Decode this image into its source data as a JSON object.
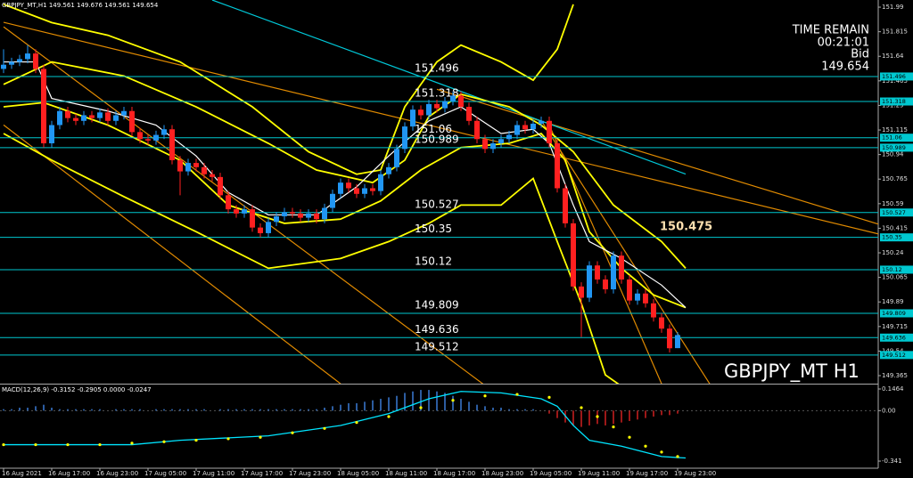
{
  "chart_data": [
    {
      "type": "candlestick",
      "title": "GBPJPY_MT,H1 149.561 149.676 149.561 149.654",
      "info": [
        "TIME REMAIN",
        "00:21:01",
        "Bid",
        "149.654"
      ],
      "watermark": "GBPJPY_MT H1",
      "price_label": 150.475,
      "ylim": [
        149.308,
        152.041
      ],
      "yticks": [
        151.99,
        151.815,
        151.64,
        151.465,
        151.29,
        151.115,
        150.94,
        150.765,
        150.59,
        150.415,
        150.24,
        150.065,
        149.89,
        149.715,
        149.54,
        149.365
      ],
      "levels": [
        151.496,
        151.318,
        151.06,
        150.989,
        150.527,
        150.35,
        150.12,
        149.809,
        149.636,
        149.512
      ],
      "level_color": "#00c8d0",
      "up_color": "#2196f3",
      "down_color": "#ff2020",
      "categories": [
        "16 Aug 2021",
        null,
        null,
        null,
        null,
        null,
        "16 Aug 17:00",
        null,
        null,
        null,
        null,
        null,
        "16 Aug 23:00",
        null,
        null,
        null,
        null,
        null,
        "17 Aug 05:00",
        null,
        null,
        null,
        null,
        null,
        "17 Aug 11:00",
        null,
        null,
        null,
        null,
        null,
        "17 Aug 17:00",
        null,
        null,
        null,
        null,
        null,
        "17 Aug 23:00",
        null,
        null,
        null,
        null,
        null,
        "18 Aug 05:00",
        null,
        null,
        null,
        null,
        null,
        "18 Aug 11:00",
        null,
        null,
        null,
        null,
        null,
        "18 Aug 17:00",
        null,
        null,
        null,
        null,
        null,
        "18 Aug 23:00",
        null,
        null,
        null,
        null,
        null,
        "19 Aug 05:00",
        null,
        null,
        null,
        null,
        null,
        "19 Aug 11:00",
        null,
        null,
        null,
        null,
        null,
        "19 Aug 17:00",
        null,
        null,
        null,
        null,
        null,
        "19 Aug 23:00"
      ],
      "candles": [
        [
          151.55,
          151.69,
          151.52,
          151.58
        ],
        [
          151.58,
          151.63,
          151.55,
          151.6
        ],
        [
          151.6,
          151.65,
          151.57,
          151.62
        ],
        [
          151.62,
          151.72,
          151.59,
          151.66
        ],
        [
          151.66,
          151.69,
          151.52,
          151.55
        ],
        [
          151.55,
          151.58,
          150.99,
          151.02
        ],
        [
          151.02,
          151.18,
          150.99,
          151.15
        ],
        [
          151.15,
          151.28,
          151.12,
          151.25
        ],
        [
          151.25,
          151.28,
          151.17,
          151.2
        ],
        [
          151.2,
          151.23,
          151.15,
          151.18
        ],
        [
          151.18,
          151.25,
          151.15,
          151.22
        ],
        [
          151.22,
          151.25,
          151.17,
          151.2
        ],
        [
          151.2,
          151.27,
          151.17,
          151.24
        ],
        [
          151.24,
          151.27,
          151.15,
          151.18
        ],
        [
          151.18,
          151.25,
          151.15,
          151.22
        ],
        [
          151.22,
          151.28,
          151.19,
          151.25
        ],
        [
          151.25,
          151.28,
          151.07,
          151.1
        ],
        [
          151.1,
          151.13,
          151.02,
          151.05
        ],
        [
          151.05,
          151.08,
          151.01,
          151.04
        ],
        [
          151.04,
          151.11,
          151.01,
          151.08
        ],
        [
          151.08,
          151.15,
          151.05,
          151.12
        ],
        [
          151.12,
          151.15,
          150.87,
          150.9
        ],
        [
          150.9,
          150.93,
          150.65,
          150.82
        ],
        [
          150.82,
          150.91,
          150.79,
          150.88
        ],
        [
          150.88,
          150.91,
          150.82,
          150.85
        ],
        [
          150.85,
          150.88,
          150.77,
          150.8
        ],
        [
          150.8,
          150.83,
          150.75,
          150.78
        ],
        [
          150.78,
          150.81,
          150.62,
          150.65
        ],
        [
          150.65,
          150.68,
          150.52,
          150.55
        ],
        [
          150.55,
          150.58,
          150.49,
          150.52
        ],
        [
          150.52,
          150.58,
          150.49,
          150.55
        ],
        [
          150.55,
          150.58,
          150.39,
          150.42
        ],
        [
          150.42,
          150.45,
          150.35,
          150.38
        ],
        [
          150.38,
          150.49,
          150.35,
          150.46
        ],
        [
          150.46,
          150.53,
          150.43,
          150.5
        ],
        [
          150.5,
          150.56,
          150.47,
          150.53
        ],
        [
          150.53,
          150.56,
          150.49,
          150.52
        ],
        [
          150.52,
          150.55,
          150.46,
          150.49
        ],
        [
          150.49,
          150.55,
          150.46,
          150.52
        ],
        [
          150.52,
          150.55,
          150.45,
          150.48
        ],
        [
          150.48,
          150.59,
          150.45,
          150.56
        ],
        [
          150.56,
          150.69,
          150.53,
          150.66
        ],
        [
          150.66,
          150.77,
          150.63,
          150.74
        ],
        [
          150.74,
          150.77,
          150.67,
          150.7
        ],
        [
          150.7,
          150.73,
          150.63,
          150.66
        ],
        [
          150.66,
          150.73,
          150.63,
          150.7
        ],
        [
          150.7,
          150.73,
          150.65,
          150.68
        ],
        [
          150.68,
          150.83,
          150.65,
          150.8
        ],
        [
          150.8,
          150.88,
          150.77,
          150.85
        ],
        [
          150.85,
          151.01,
          150.82,
          150.98
        ],
        [
          150.98,
          151.17,
          150.95,
          151.14
        ],
        [
          151.14,
          151.29,
          151.11,
          151.26
        ],
        [
          151.26,
          151.29,
          151.19,
          151.22
        ],
        [
          151.22,
          151.33,
          151.19,
          151.3
        ],
        [
          151.3,
          151.33,
          151.24,
          151.27
        ],
        [
          151.27,
          151.35,
          151.24,
          151.32
        ],
        [
          151.32,
          151.39,
          151.29,
          151.36
        ],
        [
          151.36,
          151.39,
          151.25,
          151.28
        ],
        [
          151.28,
          151.31,
          151.15,
          151.18
        ],
        [
          151.18,
          151.21,
          151.02,
          151.05
        ],
        [
          151.05,
          151.08,
          150.95,
          150.98
        ],
        [
          150.98,
          151.05,
          150.95,
          151.02
        ],
        [
          151.02,
          151.08,
          150.99,
          151.05
        ],
        [
          151.05,
          151.11,
          151.02,
          151.08
        ],
        [
          151.08,
          151.18,
          151.05,
          151.15
        ],
        [
          151.15,
          151.18,
          151.09,
          151.12
        ],
        [
          151.12,
          151.19,
          151.09,
          151.16
        ],
        [
          151.16,
          151.21,
          151.13,
          151.18
        ],
        [
          151.18,
          151.21,
          150.99,
          151.02
        ],
        [
          151.02,
          151.05,
          150.67,
          150.7
        ],
        [
          150.7,
          150.73,
          150.42,
          150.45
        ],
        [
          150.45,
          150.48,
          149.97,
          150.0
        ],
        [
          150.0,
          150.03,
          149.64,
          149.92
        ],
        [
          149.92,
          150.18,
          149.89,
          150.15
        ],
        [
          150.15,
          150.18,
          150.02,
          150.05
        ],
        [
          150.05,
          150.08,
          149.95,
          149.98
        ],
        [
          149.98,
          150.25,
          149.95,
          150.22
        ],
        [
          150.22,
          150.25,
          150.02,
          150.05
        ],
        [
          150.05,
          150.08,
          149.87,
          149.9
        ],
        [
          149.9,
          149.98,
          149.87,
          149.95
        ],
        [
          149.95,
          149.98,
          149.85,
          149.88
        ],
        [
          149.88,
          149.91,
          149.75,
          149.78
        ],
        [
          149.78,
          149.81,
          149.67,
          149.7
        ],
        [
          149.7,
          149.73,
          149.53,
          149.56
        ],
        [
          149.561,
          149.676,
          149.561,
          149.654
        ]
      ],
      "lines": [
        {
          "color": "#e08a00",
          "x": [
            0,
            109
          ],
          "values": [
            151.882,
            150.375
          ]
        },
        {
          "color": "#e08a00",
          "x": [
            0,
            60
          ],
          "values": [
            151.85,
            149.295
          ]
        },
        {
          "color": "#e08a00",
          "x": [
            0,
            42
          ],
          "values": [
            151.151,
            149.307
          ]
        },
        {
          "color": "#e08a00",
          "x": [
            54,
            113
          ],
          "values": [
            151.405,
            150.375
          ]
        },
        {
          "color": "#e08a00",
          "x": [
            67,
            88
          ],
          "values": [
            151.183,
            149.307
          ]
        },
        {
          "color": "#e08a00",
          "x": [
            68,
            82
          ],
          "values": [
            151.151,
            149.307
          ]
        },
        {
          "color": "#00c8d8",
          "x": [
            26,
            85
          ],
          "values": [
            152.041,
            150.801
          ]
        },
        {
          "color": "#ffff00",
          "x": [
            0,
            6,
            13,
            22,
            31,
            38,
            44,
            47,
            50,
            54,
            57,
            62,
            66,
            69,
            71
          ],
          "values": [
            152.01,
            151.88,
            151.79,
            151.6,
            151.28,
            150.96,
            150.8,
            150.83,
            151.28,
            151.6,
            151.72,
            151.6,
            151.47,
            151.69,
            152.01
          ]
        },
        {
          "color": "#ffff00",
          "x": [
            0,
            6,
            15,
            24,
            33,
            39,
            46,
            50,
            53,
            57,
            63,
            67,
            71,
            76,
            82,
            85
          ],
          "values": [
            151.44,
            151.6,
            151.5,
            151.28,
            151.02,
            150.83,
            150.74,
            150.9,
            151.21,
            151.37,
            151.28,
            151.15,
            150.96,
            150.58,
            150.32,
            150.13
          ]
        },
        {
          "color": "#ffff00",
          "x": [
            0,
            5,
            13,
            22,
            28,
            35,
            42,
            47,
            52,
            57,
            63,
            67,
            70,
            73,
            77,
            81,
            85
          ],
          "values": [
            151.28,
            151.31,
            151.15,
            150.9,
            150.58,
            150.45,
            150.48,
            150.61,
            150.83,
            150.99,
            151.02,
            151.09,
            150.9,
            150.39,
            150.13,
            149.94,
            149.85
          ]
        },
        {
          "color": "#ffff00",
          "x": [
            0,
            6,
            15,
            24,
            33,
            42,
            48,
            53,
            57,
            62,
            66,
            69,
            72,
            75,
            77
          ],
          "values": [
            151.09,
            150.9,
            150.64,
            150.39,
            150.13,
            150.2,
            150.32,
            150.45,
            150.58,
            150.58,
            150.77,
            150.32,
            149.88,
            149.37,
            149.29
          ]
        },
        {
          "color": "#ffffff",
          "x": [
            0,
            4,
            6,
            13,
            19,
            24,
            28,
            33,
            39,
            44,
            48,
            53,
            57,
            62,
            66,
            68,
            71,
            73,
            77,
            82,
            85
          ],
          "values": [
            151.6,
            151.6,
            151.34,
            151.25,
            151.15,
            150.93,
            150.67,
            150.51,
            150.51,
            150.71,
            150.93,
            151.18,
            151.28,
            151.09,
            151.12,
            151.02,
            150.58,
            150.32,
            150.2,
            150.01,
            149.85
          ]
        }
      ]
    },
    {
      "type": "macd",
      "title": "MACD(12,26,9) -0.3152 -0.2905 0.0000 -0.0247",
      "ylim": [
        -0.401,
        0.1765
      ],
      "yticks": [
        0.1464,
        {
          "value": 0,
          "label": "0.00"
        },
        -0.341
      ],
      "up_color": "#3a7bd5",
      "down_color": "#d02020",
      "histogram": [
        0.01,
        0.01,
        0.02,
        0.02,
        0.03,
        0.04,
        0.02,
        0.01,
        0.01,
        0.01,
        0.01,
        0.01,
        0.01,
        0,
        0.01,
        0.01,
        0.01,
        0.01,
        0,
        0.01,
        0.01,
        0.01,
        0.01,
        0.01,
        0.01,
        0.01,
        0,
        0.01,
        0.01,
        0.01,
        0.01,
        0.01,
        0.01,
        0.01,
        0.01,
        0.01,
        0.01,
        0.01,
        0.01,
        0.01,
        0.02,
        0.03,
        0.04,
        0.05,
        0.05,
        0.06,
        0.07,
        0.08,
        0.09,
        0.1,
        0.12,
        0.13,
        0.14,
        0.14,
        0.13,
        0.12,
        0.1,
        0.08,
        0.06,
        0.04,
        0.03,
        0.02,
        0.02,
        0.01,
        0.01,
        0.01,
        0.01,
        0,
        -0.02,
        -0.05,
        -0.08,
        -0.1,
        -0.11,
        -0.1,
        -0.09,
        -0.1,
        -0.09,
        -0.08,
        -0.07,
        -0.06,
        -0.05,
        -0.04,
        -0.03,
        -0.03,
        -0.02
      ],
      "line": {
        "color": "#00e5ff",
        "x": [
          0,
          16,
          22,
          33,
          42,
          48,
          53,
          57,
          62,
          67,
          69,
          71,
          73,
          77,
          82,
          85
        ],
        "values": [
          -0.23,
          -0.23,
          -0.2,
          -0.17,
          -0.1,
          -0.02,
          0.08,
          0.13,
          0.12,
          0.08,
          0.03,
          -0.1,
          -0.2,
          -0.24,
          -0.31,
          -0.32
        ]
      },
      "signal": {
        "color": "#ffff00",
        "x": [
          0,
          4,
          8,
          12,
          16,
          20,
          24,
          28,
          32,
          36,
          40,
          44,
          48,
          52,
          56,
          60,
          64,
          68,
          72,
          74,
          76,
          78,
          80,
          82,
          84
        ],
        "values": [
          -0.23,
          -0.23,
          -0.23,
          -0.23,
          -0.22,
          -0.21,
          -0.2,
          -0.19,
          -0.18,
          -0.15,
          -0.12,
          -0.08,
          -0.04,
          0.02,
          0.07,
          0.1,
          0.11,
          0.09,
          0.02,
          -0.04,
          -0.11,
          -0.18,
          -0.24,
          -0.28,
          -0.31
        ]
      }
    }
  ]
}
